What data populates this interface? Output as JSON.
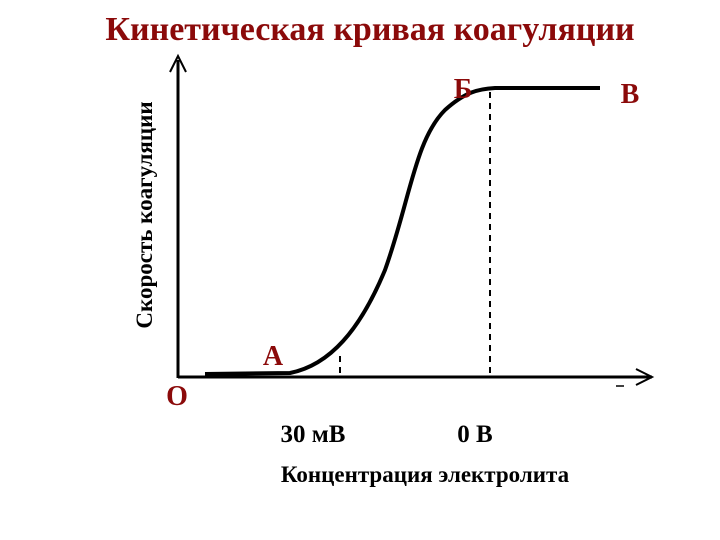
{
  "title": "Кинетическая кривая коагуляции",
  "y_axis_label": "Скорость коагуляции",
  "x_axis_label": "Концентрация электролита",
  "points": {
    "origin": "О",
    "a": "А",
    "b": "Б",
    "v": "В"
  },
  "x_labels": {
    "a": "30 мВ",
    "b": "0 В"
  }
}
